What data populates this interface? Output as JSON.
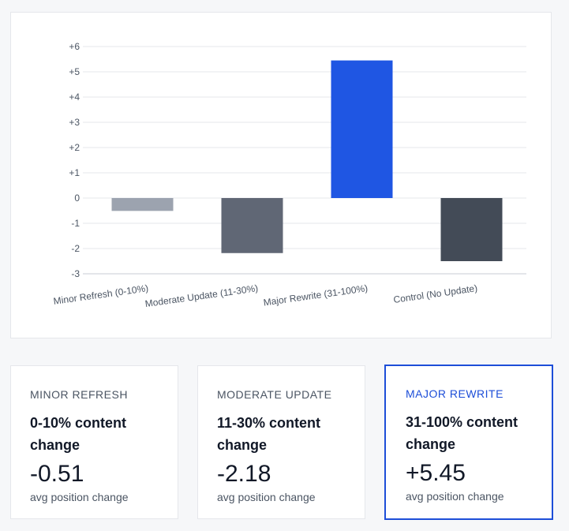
{
  "chart_data": {
    "type": "bar",
    "categories": [
      "Minor Refresh (0-10%)",
      "Moderate Update (11-30%)",
      "Major Rewrite (31-100%)",
      "Control (No Update)"
    ],
    "values": [
      -0.51,
      -2.18,
      5.45,
      -2.5
    ],
    "colors": [
      "#9ca3af",
      "#606775",
      "#1f56e3",
      "#434b57"
    ],
    "ylim": [
      -3,
      6
    ],
    "yticks": [
      "+6",
      "+5",
      "+4",
      "+3",
      "+2",
      "+1",
      "0",
      "-1",
      "-2",
      "-3"
    ],
    "title": "",
    "xlabel": "",
    "ylabel": ""
  },
  "cards": [
    {
      "name": "MINOR REFRESH",
      "desc": "0-10% content change",
      "value": "-0.51",
      "caption": "avg position change"
    },
    {
      "name": "MODERATE UPDATE",
      "desc": "11-30% content change",
      "value": "-2.18",
      "caption": "avg position change"
    },
    {
      "name": "MAJOR REWRITE",
      "desc": "31-100% content change",
      "value": "+5.45",
      "caption": "avg position change"
    }
  ]
}
